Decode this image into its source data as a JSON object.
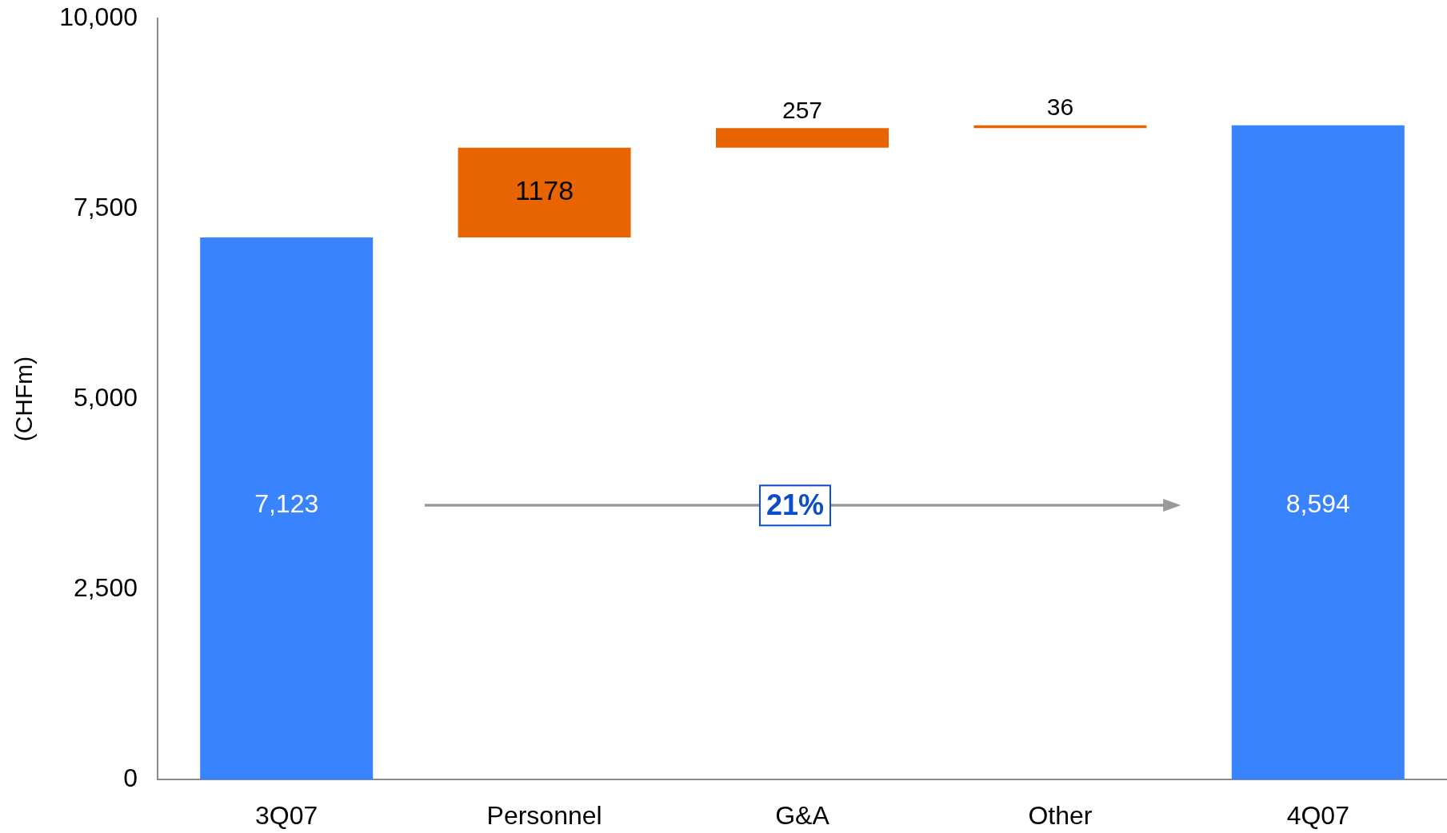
{
  "chart_data": {
    "type": "bar",
    "categories": [
      "3Q07",
      "Personnel",
      "G&A",
      "Other",
      "4Q07"
    ],
    "values": [
      7123,
      1178,
      257,
      36,
      8594
    ],
    "base": [
      0,
      7123,
      8301,
      8558,
      0
    ],
    "colors": [
      "#3a83ff",
      "#e86400",
      "#e86400",
      "#e86400",
      "#3a83ff"
    ],
    "value_labels": [
      "7,123",
      "1178",
      "257",
      "36",
      "8,594"
    ],
    "ylabel": "(CHFm)",
    "ylim": [
      0,
      10000
    ],
    "yticks": [
      0,
      {
        "value": 2500,
        "label": "2,500"
      },
      {
        "value": 5000,
        "label": "5,000"
      },
      {
        "value": 7500,
        "label": "7,500"
      },
      {
        "value": 10000,
        "label": "10,000"
      }
    ],
    "grid": false,
    "legend": false,
    "annotations": [
      "21%"
    ]
  }
}
